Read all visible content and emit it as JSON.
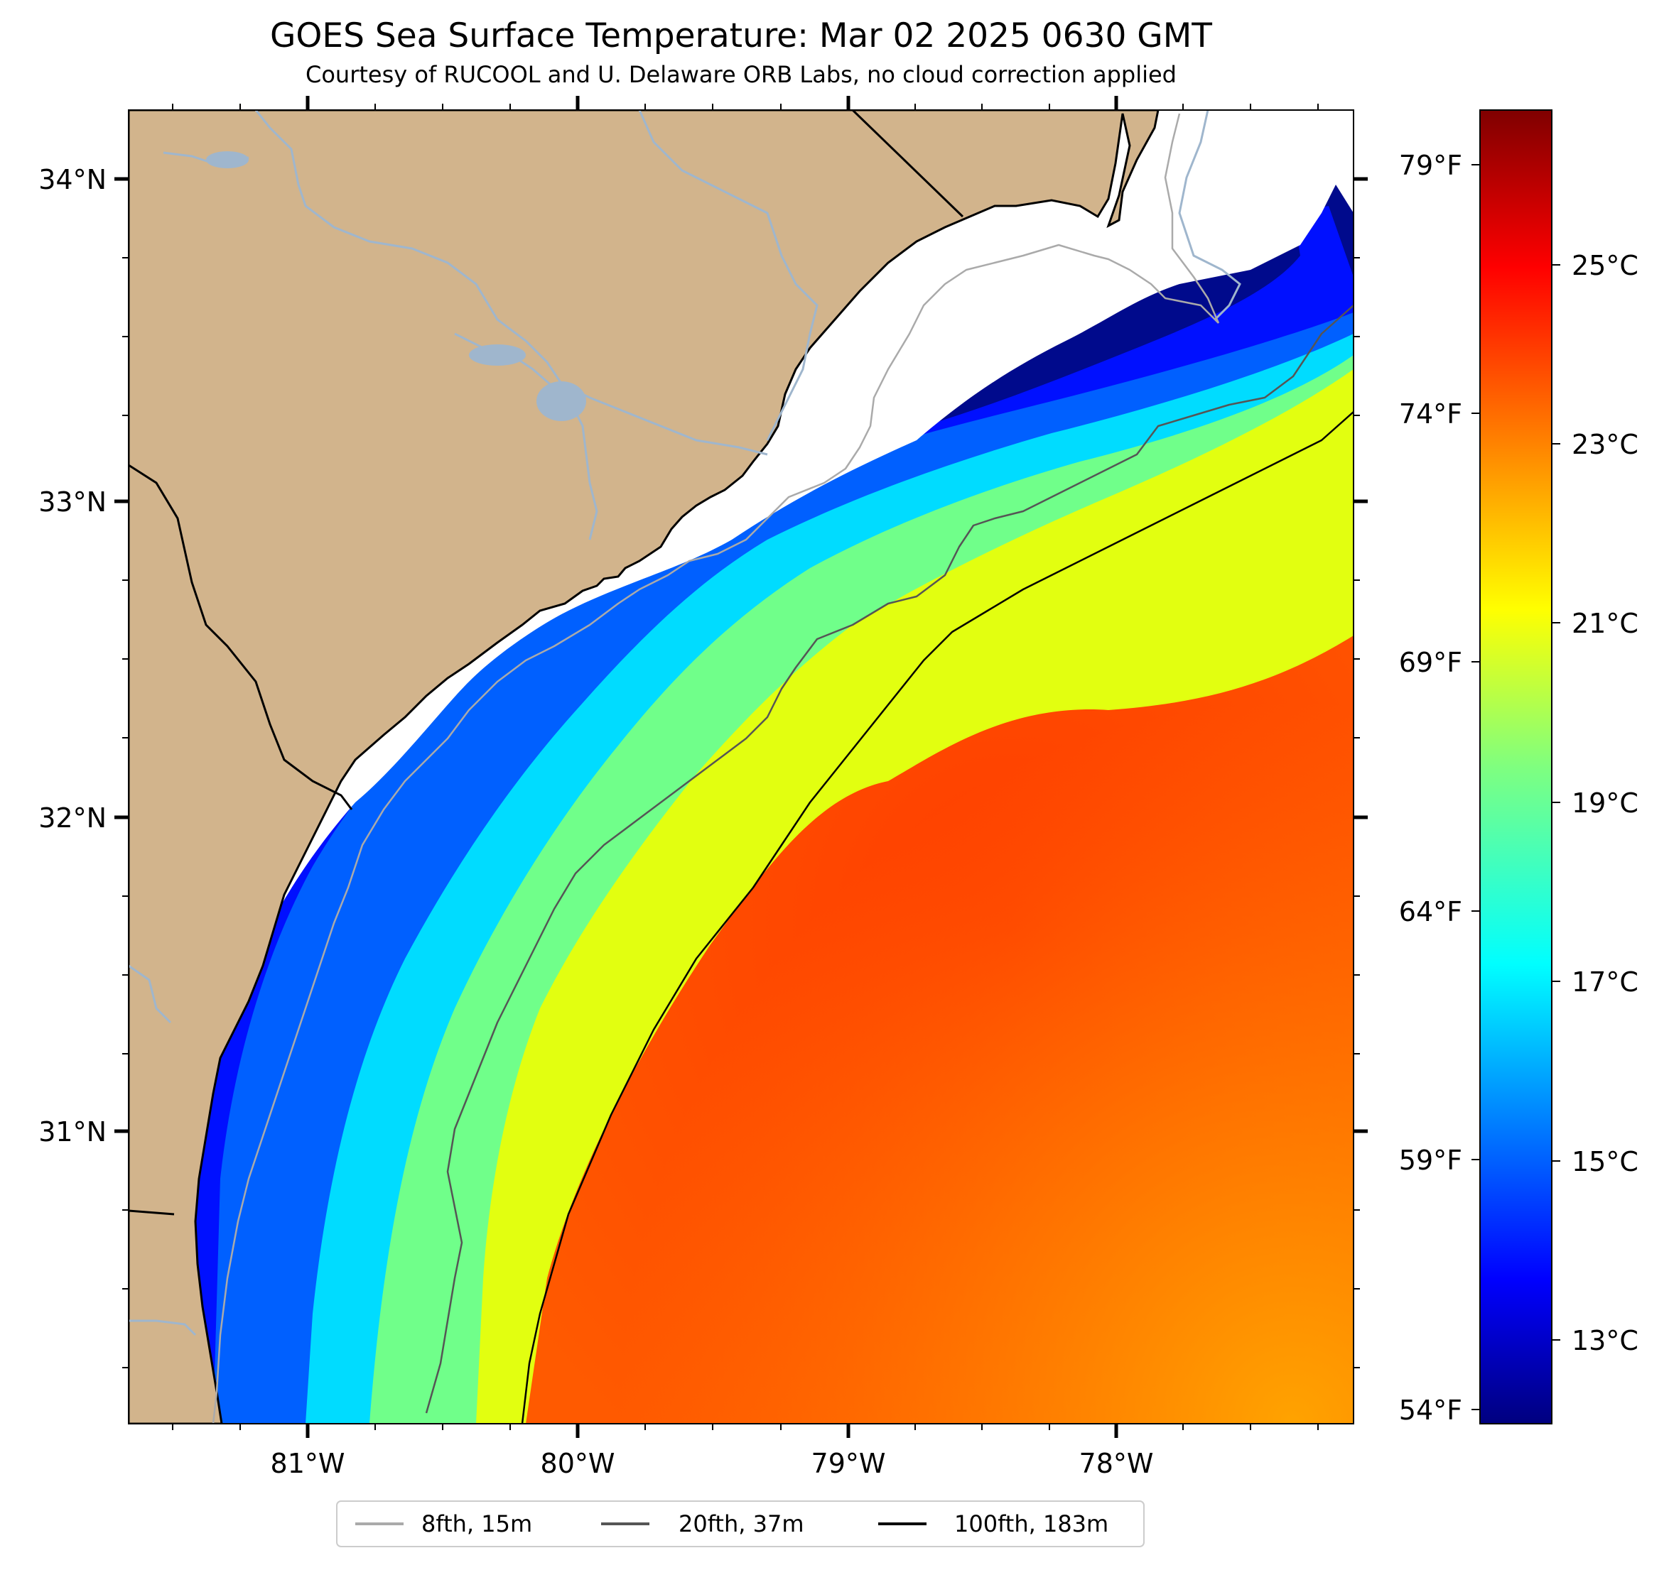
{
  "title": "GOES Sea Surface Temperature: Mar 02 2025 0630 GMT",
  "subtitle": "Courtesy of RUCOOL and U. Delaware ORB Labs, no cloud correction applied",
  "map": {
    "lat_labels": [
      "34°N",
      "33°N",
      "32°N",
      "31°N"
    ],
    "lon_labels": [
      "81°W",
      "80°W",
      "79°W",
      "78°W"
    ],
    "lon_range": [
      -81.67,
      -77.13
    ],
    "lat_range": [
      30.09,
      34.22
    ]
  },
  "colorbar": {
    "celsius_labels": [
      "25°C",
      "23°C",
      "21°C",
      "19°C",
      "17°C",
      "15°C",
      "13°C"
    ],
    "fahrenheit_labels": [
      "79°F",
      "74°F",
      "69°F",
      "64°F",
      "59°F",
      "54°F"
    ],
    "range_c": [
      12.2,
      27.2
    ],
    "colormap": "jet",
    "colors": [
      "#00007f",
      "#0000ff",
      "#007fff",
      "#00ffff",
      "#7fff7f",
      "#ffff00",
      "#ff7f00",
      "#ff0000",
      "#7f0000"
    ]
  },
  "legend": {
    "items": [
      {
        "label": "8fth, 15m",
        "color": "#aaaaaa"
      },
      {
        "label": "20fth, 37m",
        "color": "#555555"
      },
      {
        "label": "100fth, 183m",
        "color": "#000000"
      }
    ]
  },
  "land_color": "#d2b48c",
  "river_color": "#9fb6cd"
}
